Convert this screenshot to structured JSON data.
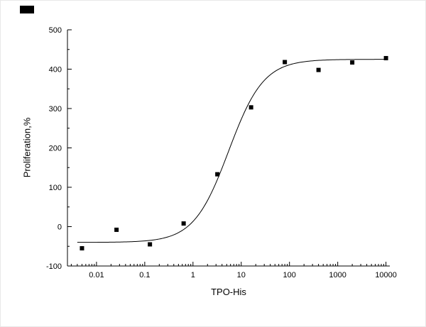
{
  "chart_data": {
    "type": "scatter",
    "title": "",
    "xlabel": "TPO-His",
    "ylabel": "Proliferation,%",
    "x_scale": "log",
    "xlim": [
      0.0025,
      12000
    ],
    "ylim": [
      -100,
      500
    ],
    "x_ticks": [
      0.01,
      0.1,
      1,
      10,
      100,
      1000,
      10000
    ],
    "x_tick_labels": [
      "0.01",
      "0.1",
      "1",
      "10",
      "100",
      "1000",
      "10000"
    ],
    "y_ticks": [
      -100,
      0,
      100,
      200,
      300,
      400,
      500
    ],
    "y_tick_labels": [
      "-100",
      "0",
      "100",
      "200",
      "300",
      "400",
      "500"
    ],
    "grid": false,
    "legend": null,
    "points": [
      {
        "x": 0.005,
        "y": -55
      },
      {
        "x": 0.026,
        "y": -8
      },
      {
        "x": 0.128,
        "y": -45
      },
      {
        "x": 0.64,
        "y": 8
      },
      {
        "x": 3.2,
        "y": 133
      },
      {
        "x": 16,
        "y": 303
      },
      {
        "x": 80,
        "y": 418
      },
      {
        "x": 400,
        "y": 398
      },
      {
        "x": 2000,
        "y": 417
      },
      {
        "x": 10000,
        "y": 428
      }
    ],
    "fit": {
      "model": "four-parameter-logistic",
      "bottom": -40,
      "top": 425,
      "ec50": 5.5,
      "hill": 1.2
    },
    "curve_x_range": [
      0.004,
      11000
    ],
    "marker": {
      "shape": "square",
      "color": "#000000",
      "size": 6
    },
    "line_color": "#000000",
    "axis_color": "#000000",
    "background_color": "#ffffff"
  }
}
